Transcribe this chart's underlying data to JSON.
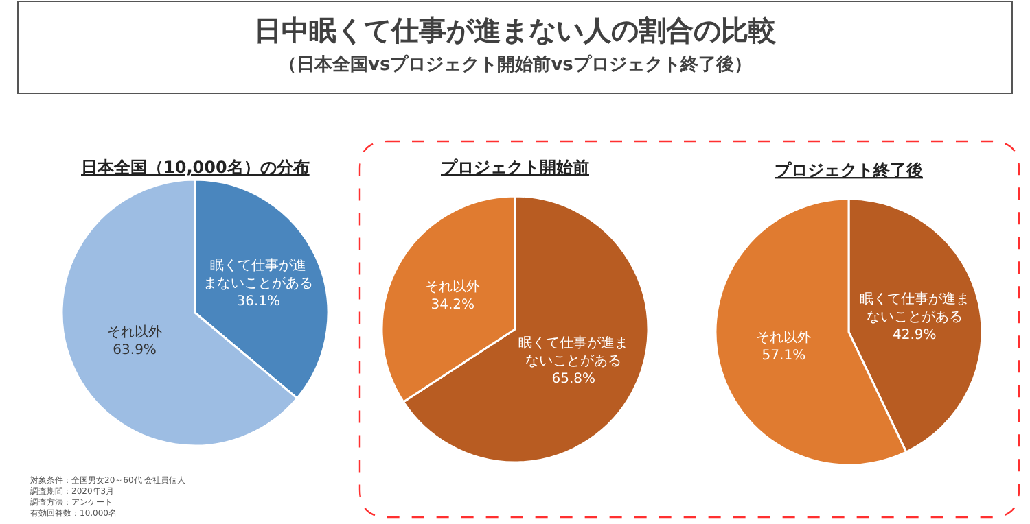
{
  "chart_data": [
    {
      "type": "other",
      "title": "日中眠くて仕事が進まない人の割合の比較",
      "subtitle": "（日本全国vsプロジェクト開始前vsプロジェクト終了後）"
    },
    {
      "type": "pie",
      "title": "日本全国（10,000名）の分布",
      "categories": [
        "眠くて仕事が進まないことがある",
        "それ以外"
      ],
      "values": [
        36.1,
        63.9
      ],
      "colors": [
        "#4a86be",
        "#9dbde3"
      ],
      "value_labels": [
        "36.1%",
        "63.9%"
      ],
      "annotations": [
        "対象条件：全国男女20～60代 会社員個人",
        "調査期間：2020年3月",
        "調査方法：アンケート",
        "有効回答数：10,000名"
      ]
    },
    {
      "type": "pie",
      "title": "プロジェクト開始前",
      "categories": [
        "眠くて仕事が進まないことがある",
        "それ以外"
      ],
      "values": [
        65.8,
        34.2
      ],
      "colors": [
        "#b85c22",
        "#e07b30"
      ],
      "value_labels": [
        "65.8%",
        "34.2%"
      ]
    },
    {
      "type": "pie",
      "title": "プロジェクト終了後",
      "categories": [
        "眠くて仕事が進まないことがある",
        "それ以外"
      ],
      "values": [
        42.9,
        57.1
      ],
      "colors": [
        "#b85c22",
        "#e07b30"
      ],
      "value_labels": [
        "42.9%",
        "57.1%"
      ]
    }
  ]
}
